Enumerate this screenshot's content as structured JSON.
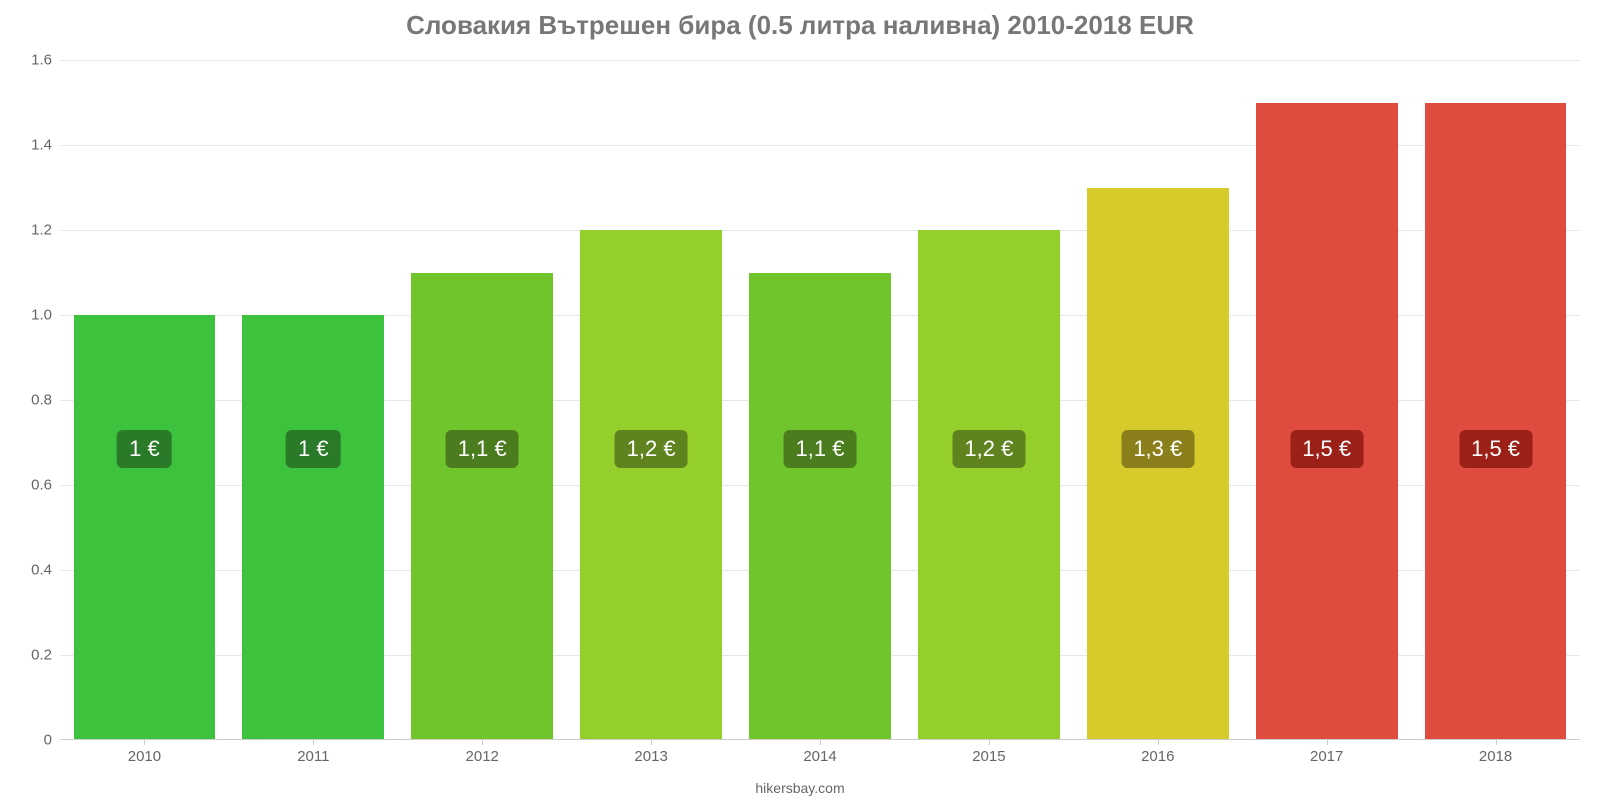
{
  "chart": {
    "type": "bar",
    "title": "Словакия Вътрешен бира (0.5 литра наливна) 2010-2018 EUR",
    "title_fontsize": 26,
    "title_color": "#777777",
    "credit": "hikersbay.com",
    "credit_color": "#666666",
    "credit_fontsize": 14,
    "background_color": "#ffffff",
    "grid_color": "#e6e6e6",
    "axis_color": "#cccccc",
    "tick_label_color": "#666666",
    "tick_label_fontsize": 15,
    "bar_label_fontsize": 22,
    "bar_label_text_color": "#ffffff",
    "bar_width_ratio": 0.84,
    "y_axis": {
      "min": 0,
      "max": 1.6,
      "tick_step": 0.2,
      "ticks": [
        {
          "v": 0,
          "label": "0"
        },
        {
          "v": 0.2,
          "label": "0.2"
        },
        {
          "v": 0.4,
          "label": "0.4"
        },
        {
          "v": 0.6,
          "label": "0.6"
        },
        {
          "v": 0.8,
          "label": "0.8"
        },
        {
          "v": 1.0,
          "label": "1.0"
        },
        {
          "v": 1.2,
          "label": "1.2"
        },
        {
          "v": 1.4,
          "label": "1.4"
        },
        {
          "v": 1.6,
          "label": "1.6"
        }
      ]
    },
    "categories": [
      "2010",
      "2011",
      "2012",
      "2013",
      "2014",
      "2015",
      "2016",
      "2017",
      "2018"
    ],
    "values": [
      1.0,
      1.0,
      1.1,
      1.2,
      1.1,
      1.2,
      1.3,
      1.5,
      1.5
    ],
    "value_labels": [
      "1 €",
      "1 €",
      "1,1 €",
      "1,2 €",
      "1,1 €",
      "1,2 €",
      "1,3 €",
      "1,5 €",
      "1,5 €"
    ],
    "bar_colors": [
      "#3cc23c",
      "#3cc23c",
      "#6fc52b",
      "#95cf2b",
      "#6fc52b",
      "#95cf2b",
      "#d6cb2b",
      "#e04b3f",
      "#e04b3f"
    ],
    "label_badge_colors": [
      "#2a7a2a",
      "#2a7a2a",
      "#4b7d1f",
      "#5e831f",
      "#4b7d1f",
      "#5e831f",
      "#8a7f1b",
      "#9a2018",
      "#9a2018"
    ],
    "label_badge_position_ratio": 0.4
  }
}
